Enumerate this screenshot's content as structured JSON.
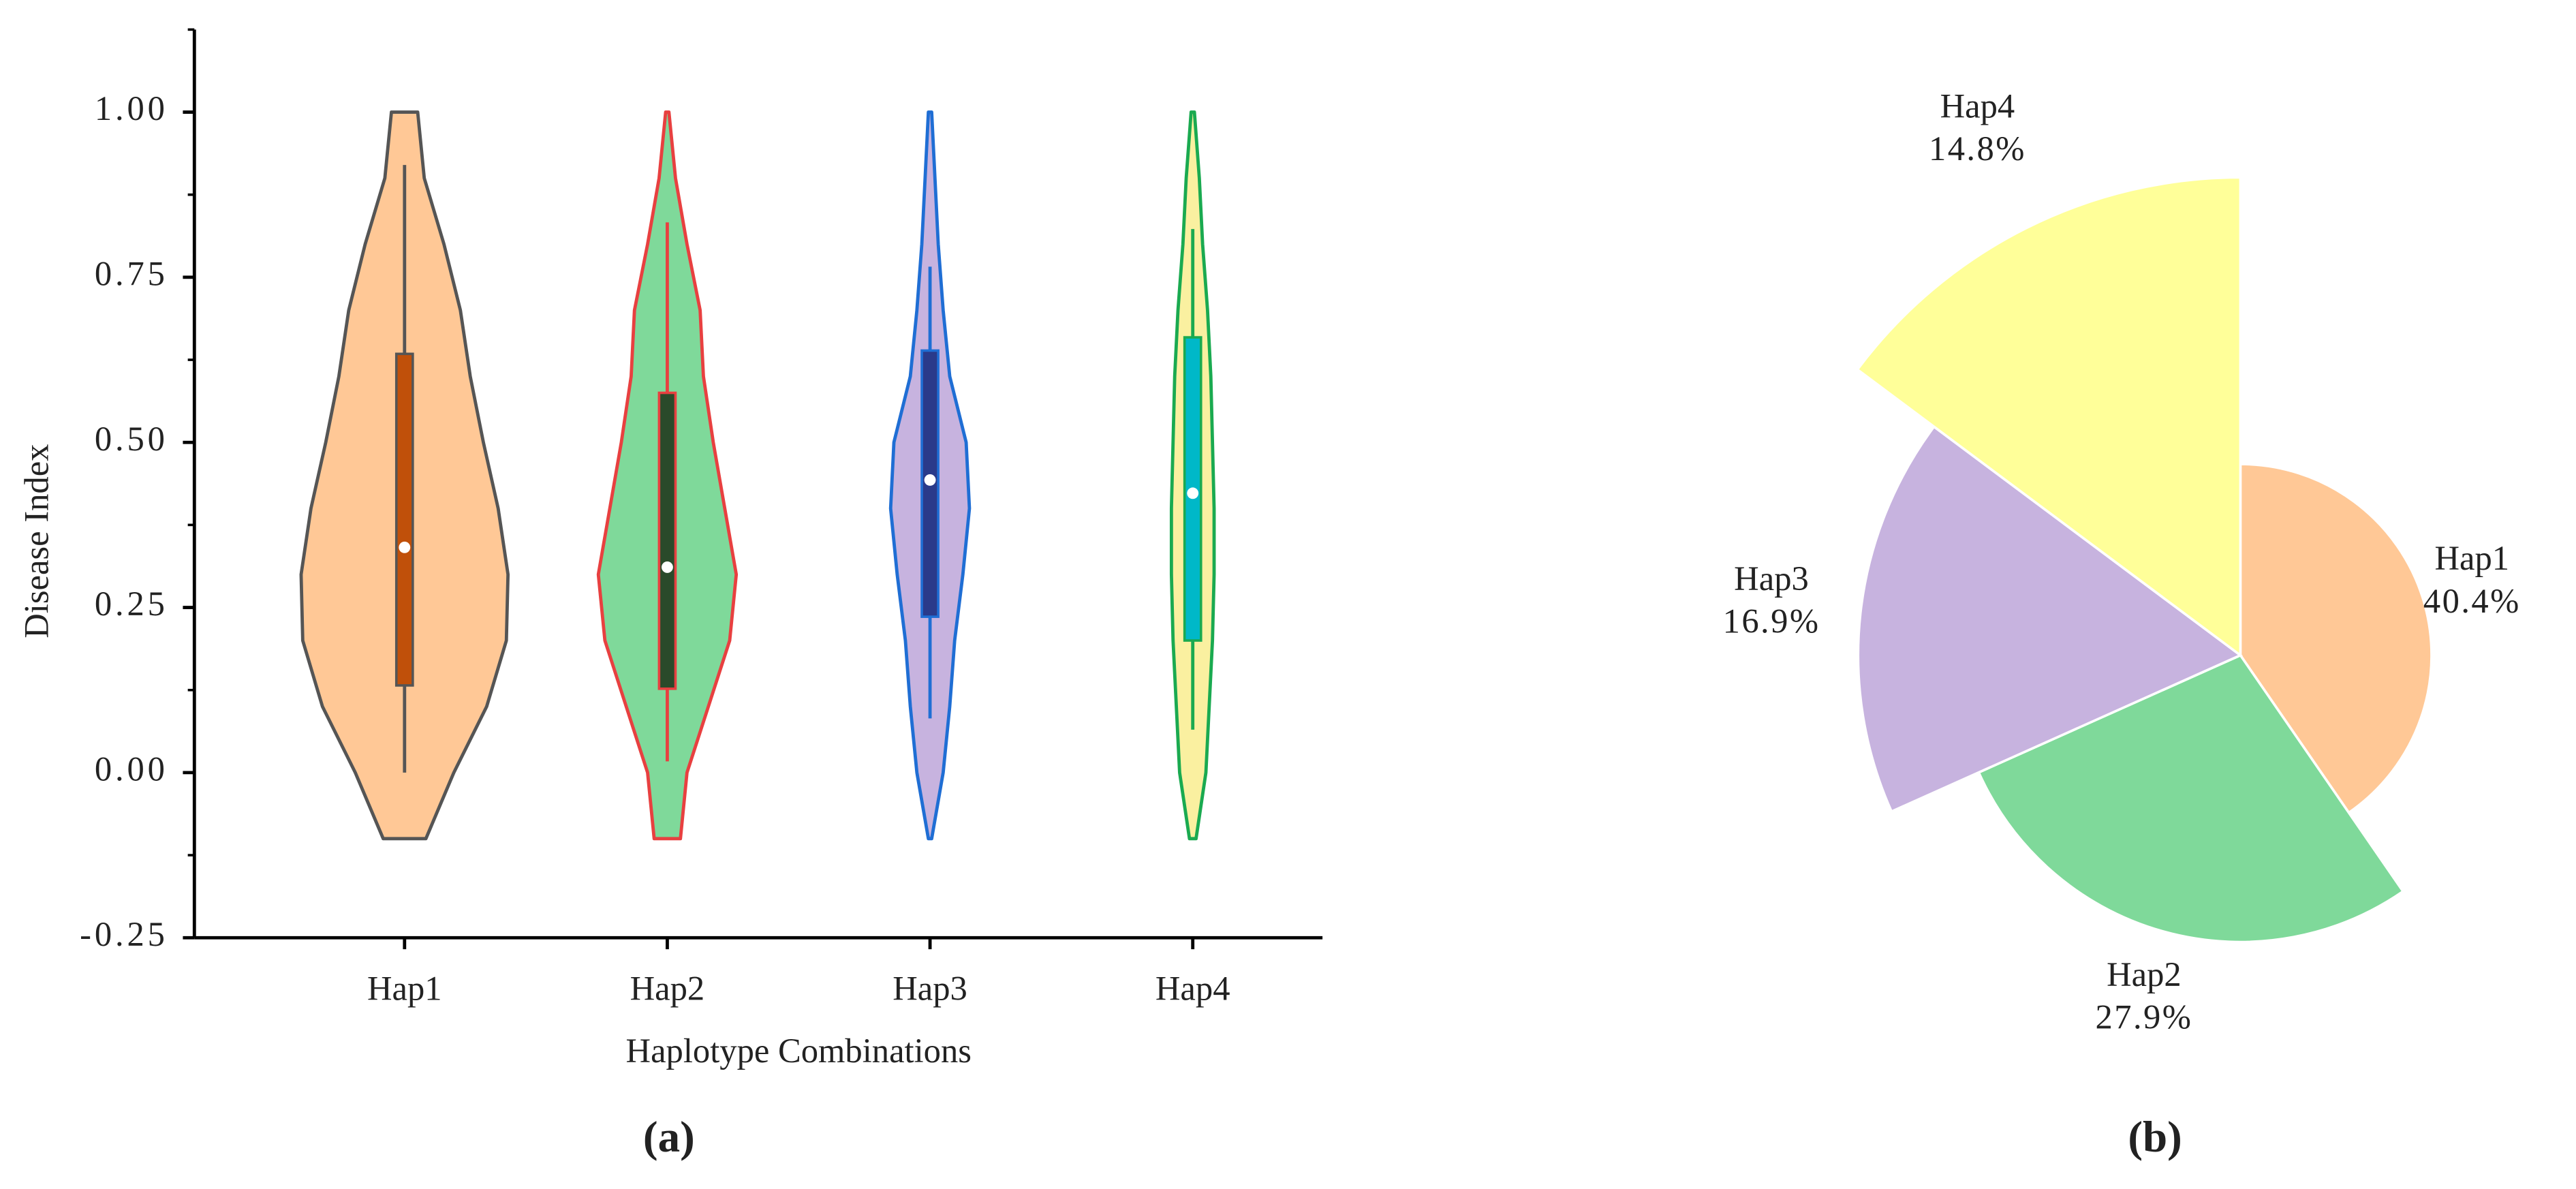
{
  "chart_data": [
    {
      "type": "violin",
      "caption": "(a)",
      "x_label": "Haplotype Combinations",
      "y_label": "Disease Index",
      "ylim": [
        -0.25,
        1.125
      ],
      "yticks": [
        {
          "value": -0.25,
          "label": "-0.25"
        },
        {
          "value": 0,
          "label": "0.00"
        },
        {
          "value": 0.25,
          "label": "0.25"
        },
        {
          "value": 0.5,
          "label": "0.50"
        },
        {
          "value": 0.75,
          "label": "0.75"
        },
        {
          "value": 1,
          "label": "1.00"
        }
      ],
      "minor_yticks": [
        -0.125,
        0.125,
        0.375,
        0.625,
        0.875,
        1.125
      ],
      "density_y": [
        -0.1,
        0,
        0.1,
        0.2,
        0.3,
        0.4,
        0.5,
        0.6,
        0.7,
        0.8,
        0.9,
        1.0
      ],
      "series": [
        {
          "name": "Hap1",
          "color": "#ffc896",
          "edge": "#555555",
          "box_color": "#c0500a",
          "density": [
            13,
            30,
            50,
            62,
            63,
            57,
            48,
            40,
            34,
            24,
            12,
            8
          ],
          "box": {
            "whislo": 0,
            "q1": 0.132,
            "med": 0.341,
            "q3": 0.634,
            "whishi": 0.92
          }
        },
        {
          "name": "Hap2",
          "color": "#7fd99a",
          "edge": "#e84040",
          "box_color": "#2a4a2a",
          "density": [
            8,
            12,
            25,
            38,
            42,
            35,
            28,
            22,
            20,
            12,
            5,
            1
          ],
          "box": {
            "whislo": 0.017,
            "q1": 0.127,
            "med": 0.311,
            "q3": 0.575,
            "whishi": 0.833
          }
        },
        {
          "name": "Hap3",
          "color": "#c7b3df",
          "edge": "#1f6ed4",
          "box_color": "#2a3a8a",
          "density": [
            1,
            8,
            12,
            15,
            20,
            24,
            22,
            12,
            8,
            5,
            3,
            1
          ],
          "box": {
            "whislo": 0.082,
            "q1": 0.236,
            "med": 0.443,
            "q3": 0.639,
            "whishi": 0.766
          }
        },
        {
          "name": "Hap4",
          "color": "#faf0a0",
          "edge": "#1aaa50",
          "box_color": "#00b8c8",
          "density": [
            2,
            8,
            10,
            12,
            13,
            13,
            12,
            11,
            9,
            6,
            4,
            1
          ],
          "box": {
            "whislo": 0.065,
            "q1": 0.2,
            "med": 0.423,
            "q3": 0.659,
            "whishi": 0.823
          }
        }
      ]
    },
    {
      "type": "pie",
      "caption": "(b)",
      "categories": [
        "Hap1",
        "Hap2",
        "Hap3",
        "Hap4"
      ],
      "values": [
        40.4,
        27.9,
        16.9,
        14.8
      ],
      "value_labels": [
        "40.4%",
        "27.9%",
        "16.9%",
        "14.8%"
      ],
      "radii": [
        0.4,
        0.6,
        0.8,
        1.0
      ],
      "colors": [
        "#ffc896",
        "#7fd99a",
        "#c7b3df",
        "#ffff99"
      ]
    }
  ]
}
